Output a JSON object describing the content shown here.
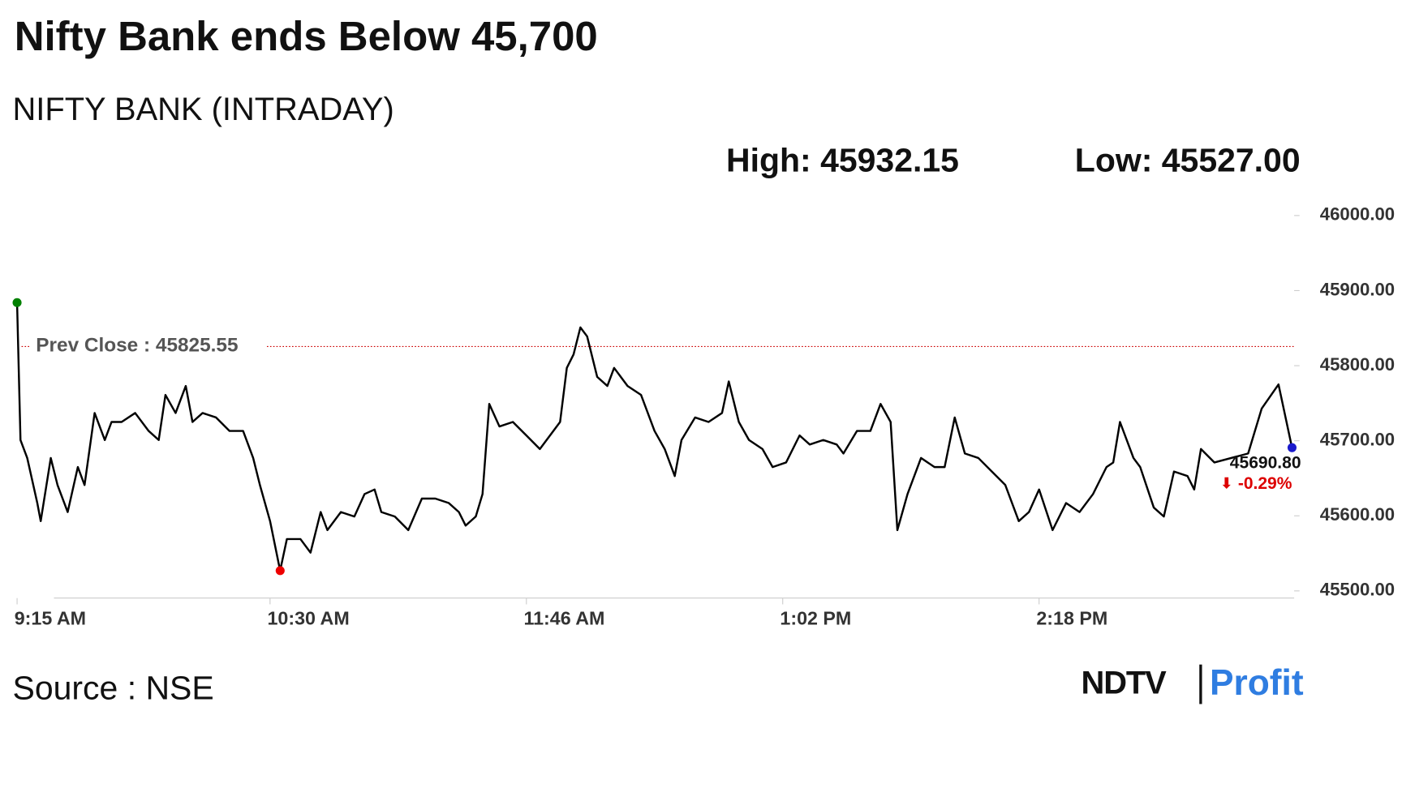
{
  "chart_data": {
    "type": "line",
    "title": "Nifty Bank ends Below 45,700",
    "subtitle": "NIFTY BANK (INTRADAY)",
    "high": {
      "name": "High:",
      "value": 45932.15,
      "label": "45932.15"
    },
    "low": {
      "name": "Low:",
      "value": 45527,
      "label": "45527.00"
    },
    "prev_close": {
      "name": "Prev Close :",
      "value": 45825.55,
      "label": "45825.55",
      "color": "#cc0000"
    },
    "close": {
      "value": 45690.8,
      "label": "45690.80"
    },
    "change": {
      "value": -0.29,
      "label": "-0.29%",
      "color": "#dd0000"
    },
    "marker_colors": {
      "open": "#008000",
      "low": "#ee0000",
      "close": "#1a1acc"
    },
    "x": [
      0,
      1,
      3,
      6,
      7,
      10,
      12,
      15,
      18,
      20,
      23,
      26,
      28,
      31,
      35,
      39,
      42,
      44,
      47,
      50,
      52,
      55,
      59,
      63,
      67,
      70,
      72,
      75,
      78,
      80,
      84,
      87,
      90,
      92,
      96,
      100,
      103,
      106,
      108,
      112,
      116,
      120,
      124,
      128,
      131,
      133,
      136,
      138,
      140,
      143,
      147,
      151,
      155,
      157,
      161,
      163,
      165,
      167,
      169,
      172,
      175,
      177,
      181,
      185,
      189,
      192,
      195,
      197,
      201,
      205,
      209,
      211,
      214,
      217,
      221,
      224,
      228,
      232,
      235,
      239,
      243,
      245,
      249,
      253,
      256,
      259,
      261,
      264,
      268,
      272,
      275,
      278,
      281,
      285,
      289,
      293,
      297,
      300,
      303,
      307,
      311,
      315,
      319,
      323,
      325,
      327,
      331,
      333,
      337,
      340,
      343,
      347,
      349,
      351,
      355,
      365,
      369,
      374,
      378
    ],
    "series": [
      {
        "name": "NIFTY BANK",
        "color": "#000000",
        "values": [
          45884,
          45701,
          45677,
          45617,
          45593,
          45677,
          45641,
          45605,
          45665,
          45641,
          45737,
          45701,
          45725,
          45725,
          45737,
          45713,
          45701,
          45761,
          45737,
          45773,
          45725,
          45737,
          45731,
          45713,
          45713,
          45677,
          45641,
          45593,
          45527,
          45569,
          45569,
          45551,
          45605,
          45581,
          45605,
          45599,
          45629,
          45635,
          45605,
          45599,
          45581,
          45623,
          45623,
          45617,
          45605,
          45587,
          45599,
          45629,
          45749,
          45719,
          45725,
          45707,
          45689,
          45701,
          45725,
          45797,
          45815,
          45851,
          45839,
          45785,
          45773,
          45797,
          45773,
          45761,
          45713,
          45689,
          45653,
          45701,
          45731,
          45725,
          45737,
          45779,
          45725,
          45701,
          45689,
          45665,
          45671,
          45707,
          45695,
          45701,
          45695,
          45683,
          45713,
          45713,
          45749,
          45725,
          45581,
          45629,
          45677,
          45665,
          45665,
          45731,
          45683,
          45677,
          45659,
          45641,
          45593,
          45605,
          45635,
          45581,
          45617,
          45605,
          45629,
          45665,
          45671,
          45725,
          45677,
          45665,
          45611,
          45599,
          45659,
          45653,
          45635,
          45689,
          45671,
          45683,
          45743,
          45775,
          45690.8
        ]
      }
    ],
    "xlim": [
      0,
      380
    ],
    "xticks": [
      {
        "value": 0,
        "label": "9:15 AM"
      },
      {
        "value": 75,
        "label": "10:30 AM"
      },
      {
        "value": 151,
        "label": "11:46 AM"
      },
      {
        "value": 227,
        "label": "1:02 PM"
      },
      {
        "value": 303,
        "label": "2:18 PM"
      }
    ],
    "ylim": [
      45500,
      46000
    ],
    "yticks": [
      {
        "value": 45500,
        "label": "45500.00"
      },
      {
        "value": 45600,
        "label": "45600.00"
      },
      {
        "value": 45700,
        "label": "45700.00"
      },
      {
        "value": 45800,
        "label": "45800.00"
      },
      {
        "value": 45900,
        "label": "45900.00"
      },
      {
        "value": 46000,
        "label": "46000.00"
      }
    ],
    "grid": false,
    "source": "Source : NSE",
    "logo": {
      "left": "NDTV",
      "right": "Profit"
    }
  }
}
